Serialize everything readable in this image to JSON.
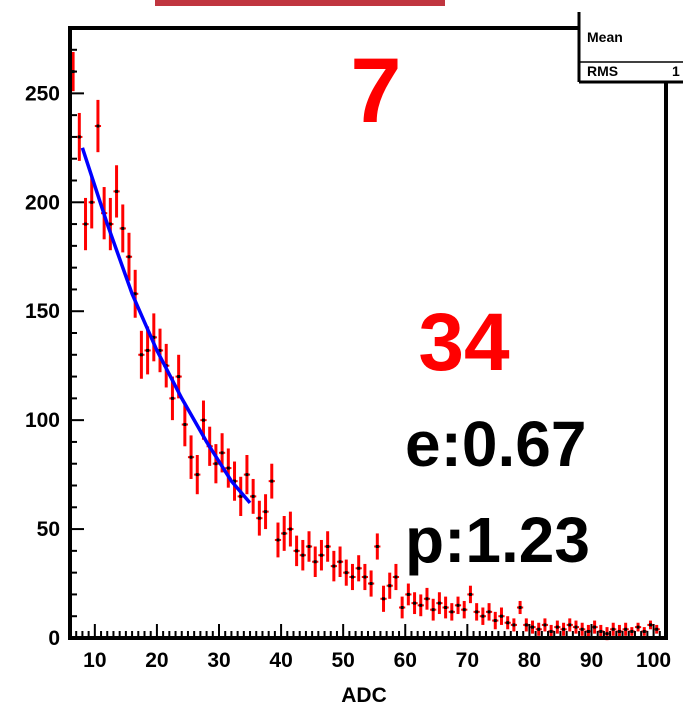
{
  "chart_data": {
    "type": "scatter",
    "xlabel": "ADC",
    "ylabel": "",
    "xlim": [
      6,
      102
    ],
    "ylim": [
      0,
      280
    ],
    "x_ticks": [
      "10",
      "20",
      "30",
      "40",
      "50",
      "60",
      "70",
      "80",
      "90",
      "100"
    ],
    "y_ticks": [
      "0",
      "50",
      "100",
      "150",
      "200",
      "250"
    ],
    "stats_box": {
      "mean_label": "Mean",
      "rms_label": "RMS",
      "rms_value": "1"
    },
    "annotations": {
      "top_number": "7",
      "big_number": "34",
      "e_text": "e:0.67",
      "p_text": "p:1.23"
    },
    "colors": {
      "data": "#ff0000",
      "fit": "#0000ff",
      "annotation": "#ff0000",
      "title_bar": "#c0353f"
    },
    "series": [
      {
        "type": "errorbar",
        "points": [
          [
            6.5,
            260,
            9
          ],
          [
            7.5,
            230,
            11
          ],
          [
            8.5,
            190,
            12
          ],
          [
            9.5,
            200,
            12
          ],
          [
            10.5,
            235,
            12
          ],
          [
            11.5,
            195,
            12
          ],
          [
            12.5,
            190,
            12
          ],
          [
            13.5,
            205,
            12
          ],
          [
            14.5,
            188,
            11
          ],
          [
            15.5,
            175,
            11
          ],
          [
            16.5,
            158,
            11
          ],
          [
            17.5,
            130,
            11
          ],
          [
            18.5,
            132,
            11
          ],
          [
            19.5,
            138,
            11
          ],
          [
            20.5,
            132,
            10
          ],
          [
            21.5,
            125,
            10
          ],
          [
            22.5,
            110,
            10
          ],
          [
            23.5,
            120,
            10
          ],
          [
            24.5,
            98,
            10
          ],
          [
            25.5,
            83,
            10
          ],
          [
            26.5,
            75,
            9
          ],
          [
            27.5,
            100,
            9
          ],
          [
            28.5,
            88,
            9
          ],
          [
            29.5,
            80,
            9
          ],
          [
            30.5,
            85,
            9
          ],
          [
            31.5,
            78,
            9
          ],
          [
            32.5,
            72,
            9
          ],
          [
            33.5,
            65,
            9
          ],
          [
            34.5,
            75,
            9
          ],
          [
            35.5,
            65,
            8
          ],
          [
            36.5,
            55,
            8
          ],
          [
            37.5,
            58,
            8
          ],
          [
            38.5,
            72,
            8
          ],
          [
            39.5,
            45,
            8
          ],
          [
            40.5,
            48,
            8
          ],
          [
            41.5,
            50,
            8
          ],
          [
            42.5,
            40,
            7
          ],
          [
            43.5,
            38,
            7
          ],
          [
            44.5,
            42,
            7
          ],
          [
            45.5,
            35,
            7
          ],
          [
            46.5,
            38,
            7
          ],
          [
            47.5,
            42,
            7
          ],
          [
            48.5,
            33,
            7
          ],
          [
            49.5,
            35,
            7
          ],
          [
            50.5,
            30,
            6
          ],
          [
            51.5,
            28,
            6
          ],
          [
            52.5,
            32,
            6
          ],
          [
            53.5,
            28,
            6
          ],
          [
            54.5,
            25,
            6
          ],
          [
            55.5,
            42,
            6
          ],
          [
            56.5,
            18,
            6
          ],
          [
            57.5,
            24,
            6
          ],
          [
            58.5,
            28,
            6
          ],
          [
            59.5,
            14,
            5
          ],
          [
            60.5,
            20,
            5
          ],
          [
            61.5,
            16,
            5
          ],
          [
            62.5,
            15,
            5
          ],
          [
            63.5,
            18,
            5
          ],
          [
            64.5,
            13,
            5
          ],
          [
            65.5,
            16,
            5
          ],
          [
            66.5,
            14,
            5
          ],
          [
            67.5,
            12,
            4
          ],
          [
            68.5,
            15,
            4
          ],
          [
            69.5,
            13,
            4
          ],
          [
            70.5,
            20,
            4
          ],
          [
            71.5,
            12,
            4
          ],
          [
            72.5,
            10,
            4
          ],
          [
            73.5,
            12,
            4
          ],
          [
            74.5,
            8,
            4
          ],
          [
            75.5,
            10,
            4
          ],
          [
            76.5,
            7,
            3
          ],
          [
            77.5,
            6,
            3
          ],
          [
            78.5,
            14,
            3
          ],
          [
            79.5,
            6,
            3
          ],
          [
            80.5,
            5,
            3
          ],
          [
            81.5,
            4,
            3
          ],
          [
            82.5,
            6,
            3
          ],
          [
            83.5,
            3,
            3
          ],
          [
            84.5,
            5,
            3
          ],
          [
            85.5,
            4,
            3
          ],
          [
            86.5,
            6,
            3
          ],
          [
            87.5,
            5,
            3
          ],
          [
            88.5,
            4,
            3
          ],
          [
            89.5,
            3,
            3
          ],
          [
            90.5,
            5,
            3
          ],
          [
            91.5,
            3,
            3
          ],
          [
            92.5,
            2,
            3
          ],
          [
            93.5,
            4,
            3
          ],
          [
            94.5,
            3,
            3
          ],
          [
            95.5,
            4,
            3
          ],
          [
            96.5,
            3,
            2
          ],
          [
            97.5,
            5,
            2
          ],
          [
            98.5,
            3,
            2
          ],
          [
            99.5,
            6,
            2
          ],
          [
            100.5,
            4,
            2
          ]
        ]
      },
      {
        "type": "fit_line",
        "points": [
          [
            8,
            225
          ],
          [
            12,
            190
          ],
          [
            16,
            158
          ],
          [
            20,
            132
          ],
          [
            24,
            110
          ],
          [
            28,
            90
          ],
          [
            32,
            72
          ],
          [
            35,
            62
          ]
        ]
      }
    ]
  }
}
